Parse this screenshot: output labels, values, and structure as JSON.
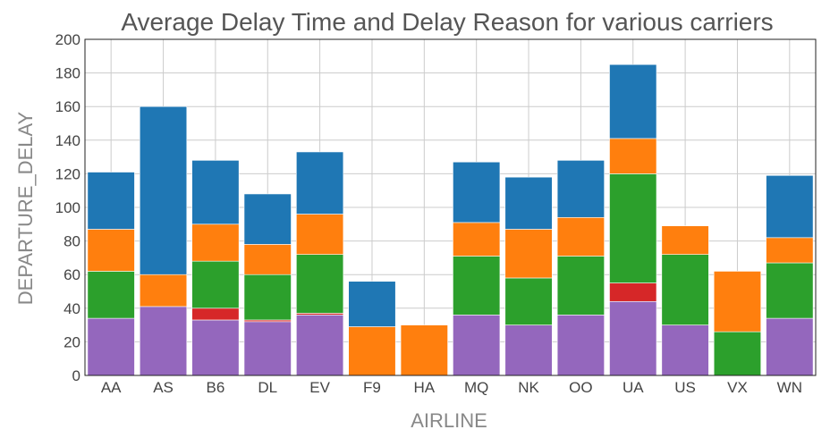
{
  "chart_data": {
    "type": "bar",
    "stacked": true,
    "title": "Average Delay Time and Delay Reason for various carriers",
    "xlabel": "AIRLINE",
    "ylabel": "DEPARTURE_DELAY",
    "ylim": [
      0,
      200
    ],
    "yticks": [
      0,
      20,
      40,
      60,
      80,
      100,
      120,
      140,
      160,
      180,
      200
    ],
    "grid": true,
    "legend": "none",
    "categories": [
      "AA",
      "AS",
      "B6",
      "DL",
      "EV",
      "F9",
      "HA",
      "MQ",
      "NK",
      "OO",
      "UA",
      "US",
      "VX",
      "WN"
    ],
    "series": [
      {
        "color": "#9467bd",
        "values": [
          34,
          41,
          33,
          32,
          36,
          0,
          0,
          36,
          30,
          36,
          44,
          30,
          0,
          34
        ]
      },
      {
        "color": "#d62728",
        "values": [
          0,
          0,
          7,
          1,
          1,
          0,
          0,
          0,
          0,
          0,
          11,
          0,
          0,
          0
        ]
      },
      {
        "color": "#2ca02c",
        "values": [
          28,
          0,
          28,
          27,
          35,
          0,
          0,
          35,
          28,
          35,
          65,
          42,
          26,
          33
        ]
      },
      {
        "color": "#ff7f0e",
        "values": [
          25,
          19,
          22,
          18,
          24,
          29,
          30,
          20,
          29,
          23,
          21,
          17,
          36,
          15
        ]
      },
      {
        "color": "#1f77b4",
        "values": [
          34,
          100,
          38,
          30,
          37,
          27,
          0,
          36,
          31,
          34,
          44,
          0,
          0,
          37
        ]
      }
    ]
  }
}
